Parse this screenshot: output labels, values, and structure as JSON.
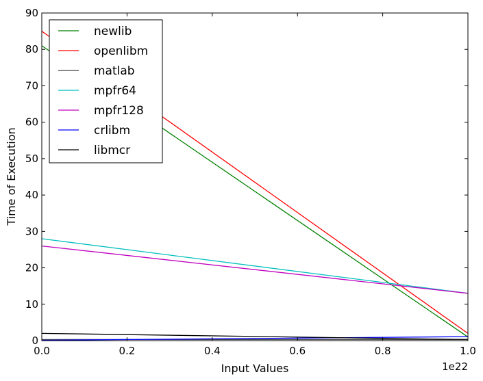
{
  "chart_data": {
    "type": "line",
    "xlabel": "Input Values",
    "ylabel": "Time of Execution",
    "x_offset_label": "1e22",
    "xlim": [
      0.0,
      1.0
    ],
    "ylim": [
      0,
      90
    ],
    "x_ticks": [
      "0.0",
      "0.2",
      "0.4",
      "0.6",
      "0.8",
      "1.0"
    ],
    "y_ticks": [
      "0",
      "10",
      "20",
      "30",
      "40",
      "50",
      "60",
      "70",
      "80",
      "90"
    ],
    "legend_position": "top-left",
    "grid": false,
    "series": [
      {
        "name": "newlib",
        "color": "#008000",
        "x": [
          0.0,
          1.0
        ],
        "y": [
          81,
          1
        ]
      },
      {
        "name": "openlibm",
        "color": "#ff0000",
        "x": [
          0.0,
          1.0
        ],
        "y": [
          85,
          2
        ]
      },
      {
        "name": "matlab",
        "color": "#404040",
        "x": [
          0.0,
          1.0
        ],
        "y": [
          0.3,
          0.3
        ]
      },
      {
        "name": "mpfr64",
        "color": "#00bfbf",
        "x": [
          0.0,
          1.0
        ],
        "y": [
          28,
          13
        ]
      },
      {
        "name": "mpfr128",
        "color": "#bf00bf",
        "x": [
          0.0,
          1.0
        ],
        "y": [
          26,
          13
        ]
      },
      {
        "name": "crlibm",
        "color": "#0000ff",
        "x": [
          0.0,
          1.0
        ],
        "y": [
          0.1,
          1.1
        ]
      },
      {
        "name": "libmcr",
        "color": "#000000",
        "x": [
          0.0,
          1.0
        ],
        "y": [
          2.0,
          0.3
        ]
      }
    ]
  }
}
